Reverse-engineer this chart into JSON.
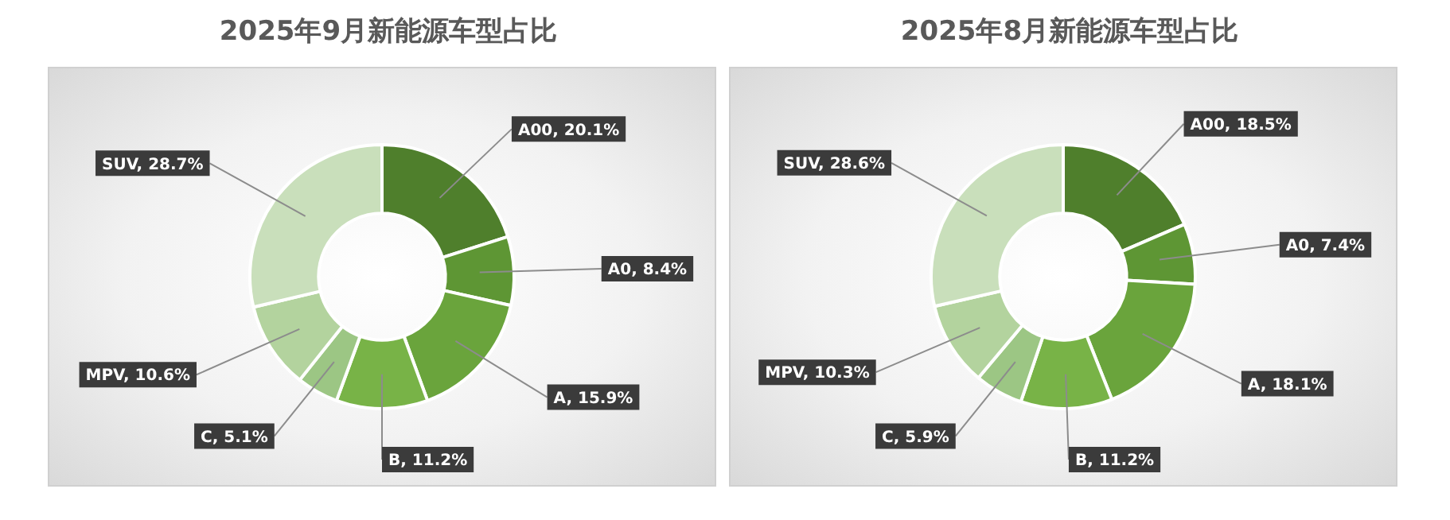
{
  "chart_data": [
    {
      "type": "donut",
      "title": "2025年9月新能源车型占比",
      "categories": [
        "A00",
        "A0",
        "A",
        "B",
        "C",
        "MPV",
        "SUV"
      ],
      "values": [
        20.1,
        8.4,
        15.9,
        11.2,
        5.1,
        10.6,
        28.7
      ],
      "colors": [
        "#4f7f2c",
        "#5e9634",
        "#6aa43c",
        "#78b347",
        "#9cc684",
        "#b3d39e",
        "#c9dfbb"
      ],
      "value_labels": [
        "20.1%",
        "8.4%",
        "15.9%",
        "11.2%",
        "5.1%",
        "10.6%",
        "28.7%"
      ],
      "legend": false
    },
    {
      "type": "donut",
      "title": "2025年8月新能源车型占比",
      "categories": [
        "A00",
        "A0",
        "A",
        "B",
        "C",
        "MPV",
        "SUV"
      ],
      "values": [
        18.5,
        7.4,
        18.1,
        11.2,
        5.9,
        10.3,
        28.6
      ],
      "colors": [
        "#4f7f2c",
        "#5e9634",
        "#6aa43c",
        "#78b347",
        "#9cc684",
        "#b3d39e",
        "#c9dfbb"
      ],
      "value_labels": [
        "18.5%",
        "7.4%",
        "18.1%",
        "11.2%",
        "5.9%",
        "10.3%",
        "28.6%"
      ],
      "legend": false
    }
  ]
}
